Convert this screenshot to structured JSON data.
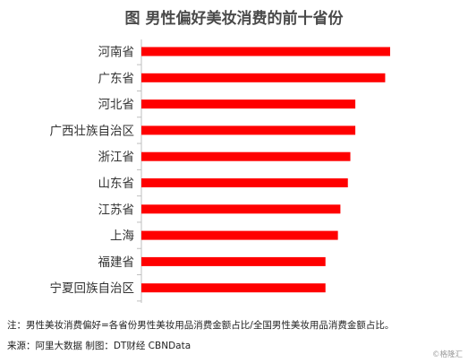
{
  "chart_data": {
    "type": "bar",
    "orientation": "horizontal",
    "title": "图 男性偏好美妆消费的前十省份",
    "categories": [
      "河南省",
      "广东省",
      "河北省",
      "广西壮族自治区",
      "浙江省",
      "山东省",
      "江苏省",
      "上海",
      "福建省",
      "宁夏回族自治区"
    ],
    "values": [
      100,
      98,
      86,
      86,
      84,
      83,
      80,
      79,
      74,
      74
    ],
    "value_unit": "relative (no axis shown)",
    "xlim": [
      0,
      100
    ],
    "bar_color": "#ff0000",
    "axis_color": "#bfbfbf",
    "grid": false,
    "legend": "none"
  },
  "note": "注：男性美妆消费偏好=各省份男性美妆用品消费金额占比/全国男性美妆用品消费金额占比。",
  "source": "来源：阿里大数据   制图：DT财经   CBNData",
  "watermark": "©格隆汇"
}
